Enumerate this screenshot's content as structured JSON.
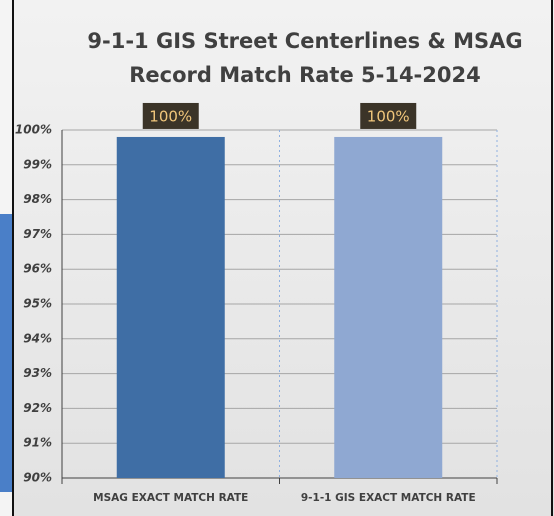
{
  "chart_data": {
    "type": "bar",
    "title": [
      "9-1-1 GIS Street Centerlines & MSAG",
      "Record Match Rate 5-14-2024"
    ],
    "categories": [
      "MSAG EXACT MATCH RATE",
      "9-1-1 GIS EXACT MATCH RATE"
    ],
    "series": [
      {
        "name": "MSAG EXACT MATCH RATE",
        "color": "#3f6ea5",
        "values": [
          99.8,
          null
        ]
      },
      {
        "name": "9-1-1 GIS EXACT MATCH RATE",
        "color": "#8fa8d2",
        "values": [
          null,
          99.8
        ]
      }
    ],
    "value_labels": [
      "100%",
      "100%"
    ],
    "ylim": [
      90,
      100
    ],
    "yticks": [
      {
        "value": 90,
        "label": "90%"
      },
      {
        "value": 91,
        "label": "91%"
      },
      {
        "value": 92,
        "label": "92%"
      },
      {
        "value": 93,
        "label": "93%"
      },
      {
        "value": 94,
        "label": "94%"
      },
      {
        "value": 95,
        "label": "95%"
      },
      {
        "value": 96,
        "label": "96%"
      },
      {
        "value": 97,
        "label": "97%"
      },
      {
        "value": 98,
        "label": "98%"
      },
      {
        "value": 99,
        "label": "99%"
      },
      {
        "value": 100,
        "label": "100%"
      }
    ],
    "grid": true
  }
}
